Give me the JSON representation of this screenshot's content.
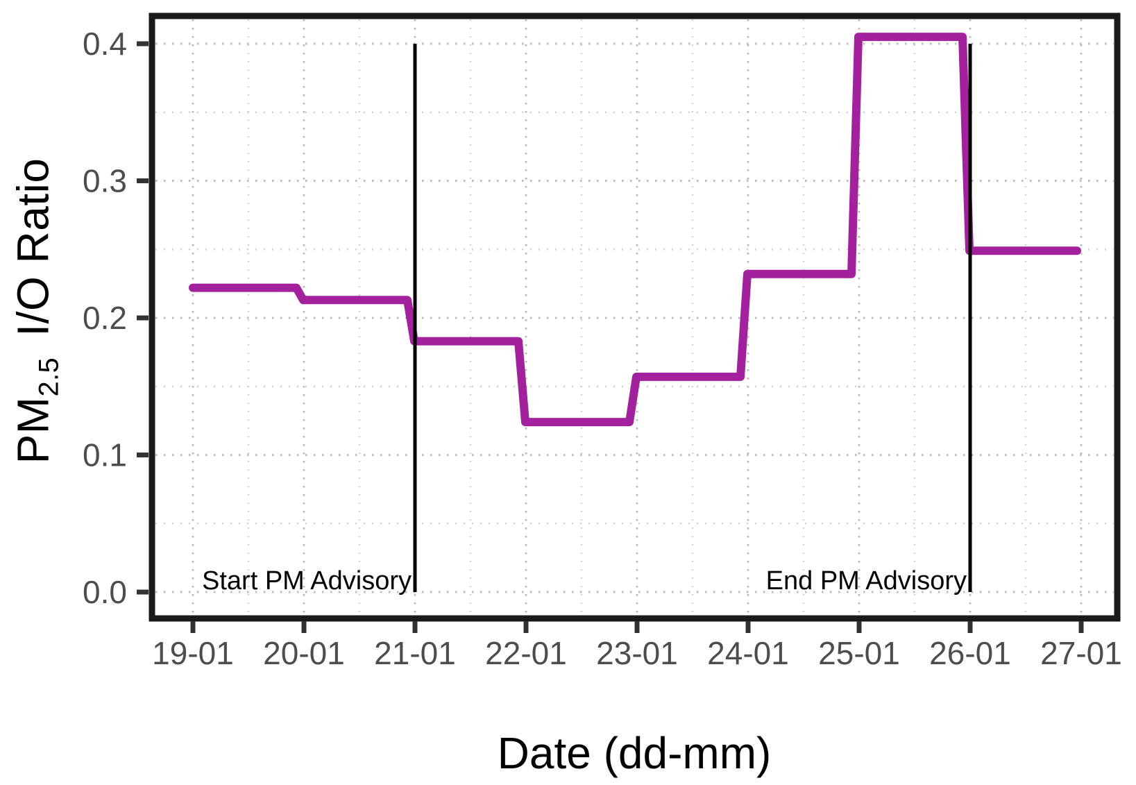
{
  "figure": {
    "background": "#ffffff"
  },
  "chart_data": {
    "type": "line",
    "subtype": "step",
    "title": "",
    "xlabel": "Date (dd-mm)",
    "ylabel_parts": {
      "prefix": "PM",
      "sub": "2.5",
      "rest": " I/O Ratio"
    },
    "x_ticks": [
      "19-01",
      "20-01",
      "21-01",
      "22-01",
      "23-01",
      "24-01",
      "25-01",
      "26-01",
      "27-01"
    ],
    "y_ticks": [
      "0.0",
      "0.1",
      "0.2",
      "0.3",
      "0.4"
    ],
    "y_tick_values": [
      0.0,
      0.1,
      0.2,
      0.3,
      0.4
    ],
    "ylim": [
      -0.018,
      0.42
    ],
    "grid": {
      "major": "dotted",
      "minor": "dotted",
      "minor_x_interval_days": 0.5,
      "minor_y_interval": 0.05
    },
    "legend": "none",
    "series": [
      {
        "name": "PM2.5 I/O Ratio",
        "color": "#A4219E",
        "steps": [
          {
            "date": "19-01",
            "value": 0.222
          },
          {
            "date": "20-01",
            "value": 0.213
          },
          {
            "date": "21-01",
            "value": 0.183
          },
          {
            "date": "22-01",
            "value": 0.124
          },
          {
            "date": "23-01",
            "value": 0.157
          },
          {
            "date": "24-01",
            "value": 0.232
          },
          {
            "date": "25-01",
            "value": 0.405
          },
          {
            "date": "26-01",
            "value": 0.249
          }
        ],
        "end_date": "27-01"
      }
    ],
    "advisory_lines": [
      {
        "date": "21-01",
        "y_from": 0.0,
        "y_to": 0.4,
        "color": "#000000"
      },
      {
        "date": "26-01",
        "y_from": 0.0,
        "y_to": 0.4,
        "color": "#000000"
      }
    ],
    "annotations": [
      {
        "label": "Start PM Advisory",
        "date": "21-01",
        "value": 0.0,
        "align": "right"
      },
      {
        "label": "End PM Advisory",
        "date": "26-01",
        "value": 0.0,
        "align": "right"
      }
    ],
    "colors": {
      "tick_label": "#4d4d4d",
      "axis_title": "#000000",
      "panel_border": "#1a1a1a",
      "tick_mark": "#333333",
      "grid_major": "#bdbdbd",
      "grid_minor": "#d2d2d2",
      "annotation_text": "#000000"
    }
  }
}
